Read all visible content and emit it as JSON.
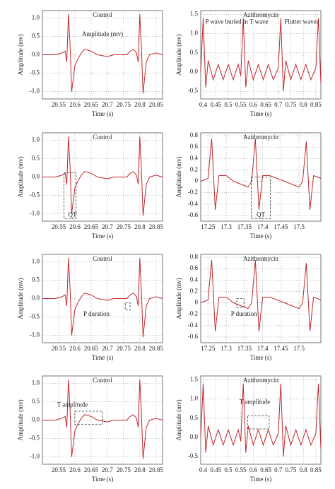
{
  "chart_data": [
    {
      "type": "line",
      "title": "Control",
      "xlabel": "Time (s)",
      "ylabel": "Amplitude (mv)",
      "annotations": [
        "Amplitude (mv)"
      ],
      "color": "#c0282d",
      "grid": true,
      "xlim": [
        20.5,
        20.87
      ],
      "xticks": [
        20.55,
        20.6,
        20.65,
        20.7,
        20.75,
        20.8,
        20.85
      ],
      "ylim": [
        -1.2,
        1.2
      ],
      "yticks": [
        {
          "value": -1,
          "label": "-1.0"
        },
        -0.5,
        {
          "value": 0,
          "label": "0.0"
        },
        0.5,
        {
          "value": 1,
          "label": "1.0"
        }
      ],
      "x": [
        20.5,
        20.52,
        20.54,
        20.56,
        20.57,
        20.575,
        20.58,
        20.585,
        20.59,
        20.6,
        20.61,
        20.62,
        20.63,
        20.65,
        20.67,
        20.7,
        20.72,
        20.74,
        20.76,
        20.77,
        20.78,
        20.79,
        20.795,
        20.8,
        20.805,
        20.81,
        20.82,
        20.83,
        20.85,
        20.87
      ],
      "values": [
        0.0,
        0.0,
        0.0,
        0.05,
        0.1,
        -0.2,
        1.1,
        0.3,
        -1.0,
        -0.3,
        -0.1,
        0.05,
        0.15,
        0.1,
        0.0,
        -0.05,
        0.0,
        0.0,
        0.0,
        0.1,
        0.15,
        0.05,
        -0.2,
        1.1,
        0.2,
        -1.05,
        -0.2,
        0.0,
        0.05,
        0.0
      ]
    },
    {
      "type": "line",
      "title": "Azithromycin",
      "xlabel": "Time (s)",
      "ylabel": "Amplitude (mv)",
      "annotations": [
        "P wave buried in T wave",
        "Flutter waves"
      ],
      "color": "#c0282d",
      "grid": true,
      "xlim": [
        0.39,
        0.87
      ],
      "xticks": [
        0.4,
        0.45,
        0.5,
        0.55,
        0.6,
        0.65,
        0.7,
        0.75,
        0.8,
        0.85
      ],
      "ylim": [
        -0.7,
        1.6
      ],
      "yticks": [
        -0.5,
        {
          "value": 0,
          "label": "0.0"
        },
        0.5,
        {
          "value": 1,
          "label": "1.0"
        },
        1.5
      ],
      "x": [
        0.39,
        0.4,
        0.41,
        0.42,
        0.44,
        0.46,
        0.48,
        0.5,
        0.52,
        0.54,
        0.55,
        0.56,
        0.57,
        0.58,
        0.6,
        0.62,
        0.64,
        0.66,
        0.68,
        0.7,
        0.71,
        0.72,
        0.73,
        0.75,
        0.77,
        0.79,
        0.81,
        0.83,
        0.85,
        0.86,
        0.87
      ],
      "values": [
        0.0,
        1.4,
        -0.4,
        0.3,
        -0.2,
        0.2,
        -0.2,
        0.2,
        -0.2,
        0.2,
        -0.1,
        1.4,
        -0.4,
        0.3,
        -0.2,
        0.2,
        -0.2,
        0.2,
        -0.2,
        0.1,
        1.4,
        -0.5,
        0.3,
        -0.2,
        0.2,
        -0.2,
        0.2,
        -0.2,
        0.1,
        1.4,
        -0.3
      ]
    },
    {
      "type": "line",
      "title": "Control",
      "xlabel": "Time (s)",
      "ylabel": "Amplitude (mv)",
      "annotations": [
        "QT"
      ],
      "color": "#c0282d",
      "grid": true,
      "xlim": [
        20.5,
        20.87
      ],
      "xticks": [
        20.55,
        20.6,
        20.65,
        20.7,
        20.75,
        20.8,
        20.85
      ],
      "ylim": [
        -1.2,
        1.2
      ],
      "yticks": [
        {
          "value": -1,
          "label": "-1.0"
        },
        -0.5,
        {
          "value": 0,
          "label": "0.0"
        },
        0.5,
        {
          "value": 1,
          "label": "1.0"
        }
      ],
      "x": [
        20.5,
        20.52,
        20.54,
        20.56,
        20.57,
        20.575,
        20.58,
        20.585,
        20.59,
        20.6,
        20.61,
        20.62,
        20.63,
        20.65,
        20.67,
        20.7,
        20.72,
        20.74,
        20.76,
        20.77,
        20.78,
        20.79,
        20.795,
        20.8,
        20.805,
        20.81,
        20.82,
        20.83,
        20.85,
        20.87
      ],
      "values": [
        0.0,
        0.0,
        0.0,
        0.05,
        0.1,
        -0.2,
        1.1,
        0.3,
        -1.0,
        -0.3,
        -0.1,
        0.05,
        0.15,
        0.1,
        0.0,
        -0.05,
        0.0,
        0.0,
        0.0,
        0.1,
        0.15,
        0.05,
        -0.2,
        1.1,
        0.2,
        -1.05,
        -0.2,
        0.0,
        0.05,
        0.0
      ]
    },
    {
      "type": "line",
      "title": "Azithromycin",
      "xlabel": "Time (s)",
      "ylabel": "Amplitude (mv)",
      "annotations": [
        "QT"
      ],
      "color": "#c0282d",
      "grid": true,
      "xlim": [
        17.23,
        17.56
      ],
      "xticks": [
        17.25,
        17.3,
        17.35,
        17.4,
        17.45,
        17.5
      ],
      "ylim": [
        -0.7,
        0.85
      ],
      "yticks": [
        -0.6,
        -0.4,
        -0.2,
        0,
        0.2,
        0.4,
        0.6,
        0.8
      ],
      "x": [
        17.23,
        17.25,
        17.26,
        17.27,
        17.28,
        17.3,
        17.32,
        17.34,
        17.36,
        17.37,
        17.38,
        17.39,
        17.4,
        17.42,
        17.44,
        17.46,
        17.48,
        17.5,
        17.51,
        17.52,
        17.53,
        17.54,
        17.56
      ],
      "values": [
        0.0,
        0.05,
        0.75,
        -0.5,
        0.1,
        0.1,
        0.0,
        -0.05,
        -0.1,
        0.0,
        0.75,
        -0.5,
        0.1,
        0.1,
        0.05,
        0.0,
        -0.05,
        -0.1,
        0.0,
        0.7,
        -0.5,
        0.1,
        0.05
      ]
    },
    {
      "type": "line",
      "title": "Control",
      "xlabel": "Time (s)",
      "ylabel": "Amplitude (mv)",
      "annotations": [
        "P duration"
      ],
      "color": "#c0282d",
      "grid": true,
      "xlim": [
        20.5,
        20.87
      ],
      "xticks": [
        20.55,
        20.6,
        20.65,
        20.7,
        20.75,
        20.8,
        20.85
      ],
      "ylim": [
        -1.2,
        1.2
      ],
      "yticks": [
        {
          "value": -1,
          "label": "-1.0"
        },
        -0.5,
        {
          "value": 0,
          "label": "0.0"
        },
        0.5,
        {
          "value": 1,
          "label": "1.0"
        }
      ],
      "x": [
        20.5,
        20.52,
        20.54,
        20.56,
        20.57,
        20.575,
        20.58,
        20.585,
        20.59,
        20.6,
        20.61,
        20.62,
        20.63,
        20.65,
        20.67,
        20.7,
        20.72,
        20.74,
        20.76,
        20.77,
        20.78,
        20.79,
        20.795,
        20.8,
        20.805,
        20.81,
        20.82,
        20.83,
        20.85,
        20.87
      ],
      "values": [
        0.0,
        0.0,
        0.0,
        0.05,
        0.1,
        -0.2,
        1.1,
        0.3,
        -1.0,
        -0.3,
        -0.1,
        0.05,
        0.15,
        0.1,
        0.0,
        -0.05,
        0.0,
        0.0,
        0.0,
        0.1,
        0.15,
        0.05,
        -0.2,
        1.1,
        0.2,
        -1.05,
        -0.2,
        0.0,
        0.05,
        0.0
      ]
    },
    {
      "type": "line",
      "title": "Azithromycin",
      "xlabel": "Time (s)",
      "ylabel": "Amplitude (mv)",
      "annotations": [
        "P duration"
      ],
      "color": "#c0282d",
      "grid": true,
      "xlim": [
        17.23,
        17.56
      ],
      "xticks": [
        17.25,
        17.3,
        17.35,
        17.4,
        17.45,
        17.5
      ],
      "ylim": [
        -0.7,
        0.85
      ],
      "yticks": [
        -0.6,
        -0.4,
        -0.2,
        0,
        0.2,
        0.4,
        0.6,
        0.8
      ],
      "x": [
        17.23,
        17.25,
        17.26,
        17.27,
        17.28,
        17.3,
        17.32,
        17.34,
        17.36,
        17.37,
        17.38,
        17.39,
        17.4,
        17.42,
        17.44,
        17.46,
        17.48,
        17.5,
        17.51,
        17.52,
        17.53,
        17.54,
        17.56
      ],
      "values": [
        0.0,
        0.05,
        0.75,
        -0.5,
        0.1,
        0.1,
        0.0,
        -0.05,
        -0.1,
        0.0,
        0.75,
        -0.5,
        0.1,
        0.1,
        0.05,
        0.0,
        -0.05,
        -0.1,
        0.0,
        0.7,
        -0.5,
        0.1,
        0.05
      ]
    },
    {
      "type": "line",
      "title": "Control",
      "xlabel": "Time (s)",
      "ylabel": "Amplitude (mv)",
      "annotations": [
        "T amplitude"
      ],
      "color": "#c0282d",
      "grid": true,
      "xlim": [
        20.5,
        20.87
      ],
      "xticks": [
        20.55,
        20.6,
        20.65,
        20.7,
        20.75,
        20.8,
        20.85
      ],
      "ylim": [
        -1.2,
        1.2
      ],
      "yticks": [
        {
          "value": -1,
          "label": "-1.0"
        },
        -0.5,
        {
          "value": 0,
          "label": "0.0"
        },
        0.5,
        {
          "value": 1,
          "label": "1.0"
        }
      ],
      "x": [
        20.5,
        20.52,
        20.54,
        20.56,
        20.57,
        20.575,
        20.58,
        20.585,
        20.59,
        20.6,
        20.61,
        20.62,
        20.63,
        20.65,
        20.67,
        20.7,
        20.72,
        20.74,
        20.76,
        20.77,
        20.78,
        20.79,
        20.795,
        20.8,
        20.805,
        20.81,
        20.82,
        20.83,
        20.85,
        20.87
      ],
      "values": [
        0.0,
        0.0,
        0.0,
        0.05,
        0.1,
        -0.2,
        1.1,
        0.3,
        -1.0,
        -0.3,
        -0.1,
        0.05,
        0.15,
        0.1,
        0.0,
        -0.05,
        0.0,
        0.0,
        0.0,
        0.1,
        0.15,
        0.05,
        -0.2,
        1.1,
        0.2,
        -1.05,
        -0.2,
        0.0,
        0.05,
        0.0
      ]
    },
    {
      "type": "line",
      "title": "Azithromycin",
      "xlabel": "Time (s)",
      "ylabel": "Amplitude (mv)",
      "annotations": [
        "T amplitude"
      ],
      "color": "#c0282d",
      "grid": true,
      "xlim": [
        0.39,
        0.87
      ],
      "xticks": [
        0.4,
        0.45,
        0.5,
        0.55,
        0.6,
        0.65,
        0.7,
        0.75,
        0.8,
        0.85
      ],
      "ylim": [
        -0.7,
        1.6
      ],
      "yticks": [
        -0.5,
        {
          "value": 0,
          "label": "0.0"
        },
        0.5,
        {
          "value": 1,
          "label": "1.0"
        },
        1.5
      ],
      "x": [
        0.39,
        0.4,
        0.41,
        0.42,
        0.44,
        0.46,
        0.48,
        0.5,
        0.52,
        0.54,
        0.55,
        0.56,
        0.57,
        0.58,
        0.6,
        0.62,
        0.64,
        0.66,
        0.68,
        0.7,
        0.71,
        0.72,
        0.73,
        0.75,
        0.77,
        0.79,
        0.81,
        0.83,
        0.85,
        0.86,
        0.87
      ],
      "values": [
        0.0,
        1.4,
        -0.4,
        0.3,
        -0.2,
        0.2,
        -0.2,
        0.2,
        -0.2,
        0.2,
        -0.1,
        1.4,
        -0.4,
        0.3,
        -0.2,
        0.2,
        -0.2,
        0.2,
        -0.2,
        0.1,
        1.4,
        -0.5,
        0.3,
        -0.2,
        0.2,
        -0.2,
        0.2,
        -0.2,
        0.1,
        1.4,
        -0.3
      ]
    }
  ]
}
